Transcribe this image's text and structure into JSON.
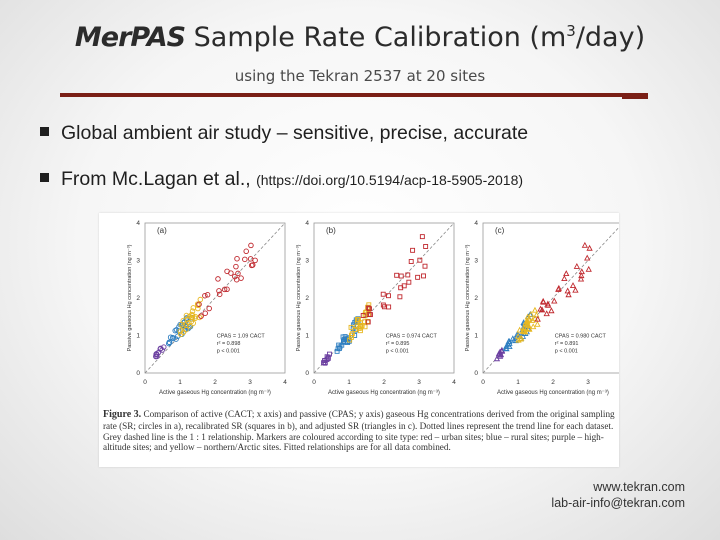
{
  "slide": {
    "title_brand": "MerPAS",
    "title_text": " Sample Rate Calibration (m",
    "title_sup": "3",
    "title_end": "/day)",
    "subtitle": "using the Tekran 2537 at 20 sites",
    "bullets": [
      {
        "text": "Global ambient air study – sensitive, precise, accurate"
      },
      {
        "text": "From Mc.Lagan et al., ",
        "link": "(https://doi.org/10.5194/acp-18-5905-2018)"
      }
    ],
    "footer_url": "www.tekran.com",
    "footer_email": "lab-air-info@tekran.com",
    "colors": {
      "rule": "#7a1f16",
      "urban": "#c0282e",
      "rural": "#2f7fc1",
      "high_altitude": "#6b3fa0",
      "arctic": "#e8b820"
    }
  },
  "figure": {
    "panels": [
      {
        "label": "(a)",
        "marker": "circle",
        "eq1": "C",
        "eq1b": "PAS",
        "eq1c": " = 1.09 C",
        "eq1d": "ACT",
        "eq2": "r² = 0.898",
        "eq3": "p < 0.001"
      },
      {
        "label": "(b)",
        "marker": "square",
        "eq1": "C",
        "eq1b": "PAS",
        "eq1c": " = 0.974 C",
        "eq1d": "ACT",
        "eq2": "r² = 0.895",
        "eq3": "p < 0.001"
      },
      {
        "label": "(c)",
        "marker": "triangle",
        "eq1": "C",
        "eq1b": "PAS",
        "eq1c": " = 0.980 C",
        "eq1d": "ACT",
        "eq2": "r² = 0.891",
        "eq3": "p < 0.001"
      }
    ],
    "ylabel": "Passive gaseous Hg concentration (ng m⁻³)",
    "xlabel": "Active gaseous Hg concentration (ng m⁻³)",
    "ticks": [
      "0",
      "1",
      "2",
      "3",
      "4"
    ],
    "caption_head": "Figure 3.",
    "caption_body": " Comparison of active (CACT; x axis) and passive (CPAS; y axis) gaseous Hg concentrations derived from the original sampling rate (SR; circles in a), recalibrated SR (squares in b), and adjusted SR (triangles in c). Dotted lines represent the trend line for each dataset. Grey dashed line is the 1 : 1 relationship. Markers are coloured according to site type: red – urban sites; blue – rural sites; purple – high-altitude sites; and yellow – northern/Arctic sites. Fitted relationships are for all data combined."
  }
}
